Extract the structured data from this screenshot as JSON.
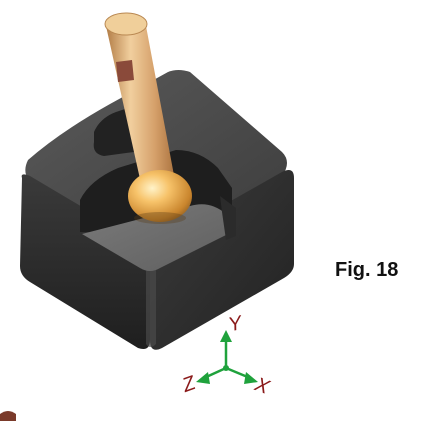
{
  "figure": {
    "caption": "Fig. 18"
  },
  "axes": {
    "x_label": "X",
    "y_label": "Y",
    "z_label": "Z"
  },
  "colors": {
    "block_top": "#4b4b4b",
    "block_front": "#2a2a2a",
    "pocket_floor": "#707070",
    "tool_shank": "#d9aa72",
    "tool_tip": "#e3a24a",
    "axis_arrows": "#1fa23c",
    "axis_labels": "#8a1a1a"
  }
}
